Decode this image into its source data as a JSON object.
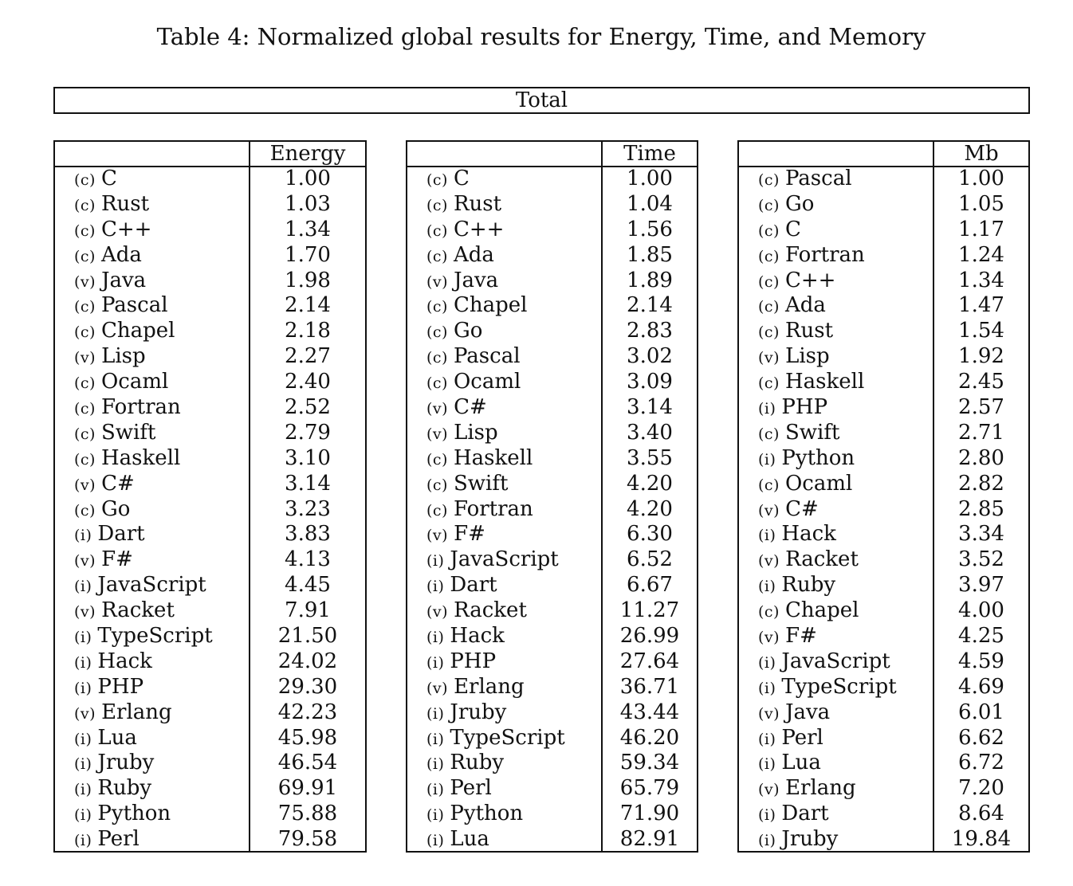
{
  "caption": "Table 4: Normalized global results for Energy, Time, and Memory",
  "total_header": "Total",
  "tables": [
    {
      "header": "Energy",
      "rows": [
        {
          "cat": "(c)",
          "lang": "C",
          "value": "1.00"
        },
        {
          "cat": "(c)",
          "lang": "Rust",
          "value": "1.03"
        },
        {
          "cat": "(c)",
          "lang": "C++",
          "value": "1.34"
        },
        {
          "cat": "(c)",
          "lang": "Ada",
          "value": "1.70"
        },
        {
          "cat": "(v)",
          "lang": "Java",
          "value": "1.98"
        },
        {
          "cat": "(c)",
          "lang": "Pascal",
          "value": "2.14"
        },
        {
          "cat": "(c)",
          "lang": "Chapel",
          "value": "2.18"
        },
        {
          "cat": "(v)",
          "lang": "Lisp",
          "value": "2.27"
        },
        {
          "cat": "(c)",
          "lang": "Ocaml",
          "value": "2.40"
        },
        {
          "cat": "(c)",
          "lang": "Fortran",
          "value": "2.52"
        },
        {
          "cat": "(c)",
          "lang": "Swift",
          "value": "2.79"
        },
        {
          "cat": "(c)",
          "lang": "Haskell",
          "value": "3.10"
        },
        {
          "cat": "(v)",
          "lang": "C#",
          "value": "3.14"
        },
        {
          "cat": "(c)",
          "lang": "Go",
          "value": "3.23"
        },
        {
          "cat": "(i)",
          "lang": "Dart",
          "value": "3.83"
        },
        {
          "cat": "(v)",
          "lang": "F#",
          "value": "4.13"
        },
        {
          "cat": "(i)",
          "lang": "JavaScript",
          "value": "4.45"
        },
        {
          "cat": "(v)",
          "lang": "Racket",
          "value": "7.91"
        },
        {
          "cat": "(i)",
          "lang": "TypeScript",
          "value": "21.50"
        },
        {
          "cat": "(i)",
          "lang": "Hack",
          "value": "24.02"
        },
        {
          "cat": "(i)",
          "lang": "PHP",
          "value": "29.30"
        },
        {
          "cat": "(v)",
          "lang": "Erlang",
          "value": "42.23"
        },
        {
          "cat": "(i)",
          "lang": "Lua",
          "value": "45.98"
        },
        {
          "cat": "(i)",
          "lang": "Jruby",
          "value": "46.54"
        },
        {
          "cat": "(i)",
          "lang": "Ruby",
          "value": "69.91"
        },
        {
          "cat": "(i)",
          "lang": "Python",
          "value": "75.88"
        },
        {
          "cat": "(i)",
          "lang": "Perl",
          "value": "79.58"
        }
      ]
    },
    {
      "header": "Time",
      "rows": [
        {
          "cat": "(c)",
          "lang": "C",
          "value": "1.00"
        },
        {
          "cat": "(c)",
          "lang": "Rust",
          "value": "1.04"
        },
        {
          "cat": "(c)",
          "lang": "C++",
          "value": "1.56"
        },
        {
          "cat": "(c)",
          "lang": "Ada",
          "value": "1.85"
        },
        {
          "cat": "(v)",
          "lang": "Java",
          "value": "1.89"
        },
        {
          "cat": "(c)",
          "lang": "Chapel",
          "value": "2.14"
        },
        {
          "cat": "(c)",
          "lang": "Go",
          "value": "2.83"
        },
        {
          "cat": "(c)",
          "lang": "Pascal",
          "value": "3.02"
        },
        {
          "cat": "(c)",
          "lang": "Ocaml",
          "value": "3.09"
        },
        {
          "cat": "(v)",
          "lang": "C#",
          "value": "3.14"
        },
        {
          "cat": "(v)",
          "lang": "Lisp",
          "value": "3.40"
        },
        {
          "cat": "(c)",
          "lang": "Haskell",
          "value": "3.55"
        },
        {
          "cat": "(c)",
          "lang": "Swift",
          "value": "4.20"
        },
        {
          "cat": "(c)",
          "lang": "Fortran",
          "value": "4.20"
        },
        {
          "cat": "(v)",
          "lang": "F#",
          "value": "6.30"
        },
        {
          "cat": "(i)",
          "lang": "JavaScript",
          "value": "6.52"
        },
        {
          "cat": "(i)",
          "lang": "Dart",
          "value": "6.67"
        },
        {
          "cat": "(v)",
          "lang": "Racket",
          "value": "11.27"
        },
        {
          "cat": "(i)",
          "lang": "Hack",
          "value": "26.99"
        },
        {
          "cat": "(i)",
          "lang": "PHP",
          "value": "27.64"
        },
        {
          "cat": "(v)",
          "lang": "Erlang",
          "value": "36.71"
        },
        {
          "cat": "(i)",
          "lang": "Jruby",
          "value": "43.44"
        },
        {
          "cat": "(i)",
          "lang": "TypeScript",
          "value": "46.20"
        },
        {
          "cat": "(i)",
          "lang": "Ruby",
          "value": "59.34"
        },
        {
          "cat": "(i)",
          "lang": "Perl",
          "value": "65.79"
        },
        {
          "cat": "(i)",
          "lang": "Python",
          "value": "71.90"
        },
        {
          "cat": "(i)",
          "lang": "Lua",
          "value": "82.91"
        }
      ]
    },
    {
      "header": "Mb",
      "rows": [
        {
          "cat": "(c)",
          "lang": "Pascal",
          "value": "1.00"
        },
        {
          "cat": "(c)",
          "lang": "Go",
          "value": "1.05"
        },
        {
          "cat": "(c)",
          "lang": "C",
          "value": "1.17"
        },
        {
          "cat": "(c)",
          "lang": "Fortran",
          "value": "1.24"
        },
        {
          "cat": "(c)",
          "lang": "C++",
          "value": "1.34"
        },
        {
          "cat": "(c)",
          "lang": "Ada",
          "value": "1.47"
        },
        {
          "cat": "(c)",
          "lang": "Rust",
          "value": "1.54"
        },
        {
          "cat": "(v)",
          "lang": "Lisp",
          "value": "1.92"
        },
        {
          "cat": "(c)",
          "lang": "Haskell",
          "value": "2.45"
        },
        {
          "cat": "(i)",
          "lang": "PHP",
          "value": "2.57"
        },
        {
          "cat": "(c)",
          "lang": "Swift",
          "value": "2.71"
        },
        {
          "cat": "(i)",
          "lang": "Python",
          "value": "2.80"
        },
        {
          "cat": "(c)",
          "lang": "Ocaml",
          "value": "2.82"
        },
        {
          "cat": "(v)",
          "lang": "C#",
          "value": "2.85"
        },
        {
          "cat": "(i)",
          "lang": "Hack",
          "value": "3.34"
        },
        {
          "cat": "(v)",
          "lang": "Racket",
          "value": "3.52"
        },
        {
          "cat": "(i)",
          "lang": "Ruby",
          "value": "3.97"
        },
        {
          "cat": "(c)",
          "lang": "Chapel",
          "value": "4.00"
        },
        {
          "cat": "(v)",
          "lang": "F#",
          "value": "4.25"
        },
        {
          "cat": "(i)",
          "lang": "JavaScript",
          "value": "4.59"
        },
        {
          "cat": "(i)",
          "lang": "TypeScript",
          "value": "4.69"
        },
        {
          "cat": "(v)",
          "lang": "Java",
          "value": "6.01"
        },
        {
          "cat": "(i)",
          "lang": "Perl",
          "value": "6.62"
        },
        {
          "cat": "(i)",
          "lang": "Lua",
          "value": "6.72"
        },
        {
          "cat": "(v)",
          "lang": "Erlang",
          "value": "7.20"
        },
        {
          "cat": "(i)",
          "lang": "Dart",
          "value": "8.64"
        },
        {
          "cat": "(i)",
          "lang": "Jruby",
          "value": "19.84"
        }
      ]
    }
  ]
}
